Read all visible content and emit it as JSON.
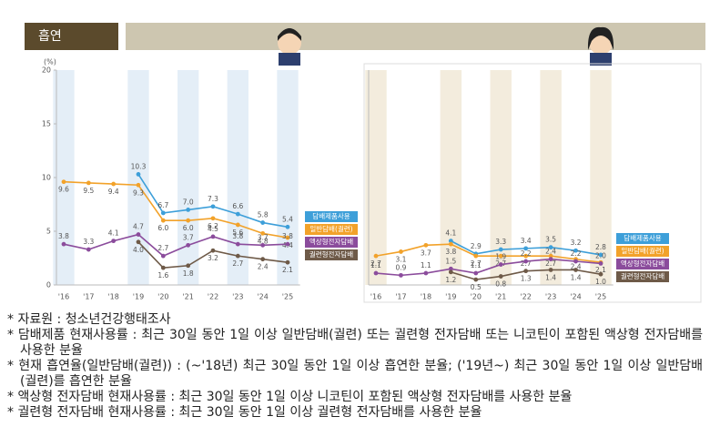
{
  "header": {
    "title": "흡연"
  },
  "chart_data": [
    {
      "type": "line",
      "y_unit": "(%)",
      "categories": [
        "'16",
        "'17",
        "'18",
        "'19",
        "'20",
        "'21",
        "'22",
        "'23",
        "'24",
        "'25"
      ],
      "ylim": [
        0,
        20
      ],
      "yticks": [
        0,
        5,
        10,
        15,
        20
      ],
      "series": [
        {
          "name": "담배제품사용",
          "color": "#3d9fd9",
          "values": [
            null,
            null,
            null,
            10.3,
            6.7,
            7.0,
            7.3,
            6.6,
            5.8,
            5.4
          ],
          "value_labels": [
            null,
            null,
            null,
            "10.3",
            "6.7",
            "7.0",
            "7.3",
            "6.6",
            "5.8",
            "5.4"
          ]
        },
        {
          "name": "일반담배(궐련)",
          "color": "#f2a22a",
          "values": [
            9.6,
            9.5,
            9.4,
            9.3,
            6.0,
            6.0,
            6.2,
            5.6,
            4.8,
            4.4
          ],
          "value_labels": [
            "9.6",
            "9.5",
            "9.4",
            "9.3",
            "6.0",
            "6.0",
            "6.2",
            "5.6",
            "4.8",
            "4.4"
          ]
        },
        {
          "name": "액상형전자담배",
          "color": "#8b4c9c",
          "values": [
            3.8,
            3.3,
            4.1,
            4.7,
            2.7,
            3.7,
            4.5,
            3.8,
            3.7,
            3.8
          ],
          "value_labels": [
            "3.8",
            "3.3",
            "4.1",
            "4.7",
            "2.7",
            "3.7",
            "4.5",
            "3.8",
            "3.7",
            "3.8"
          ]
        },
        {
          "name": "궐련형전자담배",
          "color": "#6e5a48",
          "values": [
            null,
            null,
            null,
            4.0,
            1.6,
            1.8,
            3.2,
            2.7,
            2.4,
            2.1
          ],
          "value_labels": [
            null,
            null,
            null,
            "4.0",
            "1.6",
            "1.8",
            "3.2",
            "2.7",
            "2.4",
            "2.1"
          ]
        }
      ]
    },
    {
      "type": "line",
      "categories": [
        "'16",
        "'17",
        "'18",
        "'19",
        "'20",
        "'21",
        "'22",
        "'23",
        "'24",
        "'25"
      ],
      "ylim": [
        0,
        20
      ],
      "series": [
        {
          "name": "담배제품사용",
          "color": "#3d9fd9",
          "values": [
            null,
            null,
            null,
            4.1,
            2.9,
            3.3,
            3.4,
            3.5,
            3.2,
            2.8
          ],
          "value_labels": [
            null,
            null,
            null,
            "4.1",
            "2.9",
            "3.3",
            "3.4",
            "3.5",
            "3.2",
            "2.8"
          ]
        },
        {
          "name": "일반담배(궐련)",
          "color": "#f2a22a",
          "values": [
            2.7,
            3.1,
            3.7,
            3.8,
            2.7,
            2.7,
            2.7,
            2.7,
            2.4,
            2.1
          ],
          "value_labels": [
            "2.7",
            "3.1",
            "3.7",
            "3.8",
            "2.7",
            "2.7",
            "2.7",
            "2.7",
            "2.4",
            "2.1"
          ]
        },
        {
          "name": "액상형전자담배",
          "color": "#8b4c9c",
          "values": [
            1.1,
            0.9,
            1.1,
            1.5,
            1.1,
            1.9,
            2.2,
            2.4,
            2.2,
            2.0
          ],
          "value_labels": [
            "1.1",
            "0.9",
            "1.1",
            "1.5",
            "1.1",
            "1.9",
            "2.2",
            "2.4",
            "2.2",
            "2.0"
          ]
        },
        {
          "name": "궐련형전자담배",
          "color": "#6e5a48",
          "values": [
            null,
            null,
            null,
            1.2,
            0.5,
            0.8,
            1.3,
            1.4,
            1.4,
            1.0
          ],
          "value_labels": [
            null,
            null,
            null,
            "1.2",
            "0.5",
            "0.8",
            "1.3",
            "1.4",
            "1.4",
            "1.0"
          ]
        }
      ]
    }
  ],
  "footnotes": [
    "* 자료원 : 청소년건강행태조사",
    "* 담배제품 현재사용률 : 최근 30일 동안 1일 이상 일반담배(궐련) 또는 궐련형 전자담배 또는 니코틴이 포함된 액상형 전자담배를 사용한 분율",
    "* 현재 흡연율(일반담배(궐련)) : (~'18년) 최근 30일 동안 1일 이상 흡연한 분율; ('19년~) 최근 30일 동안 1일 이상 일반담배(궐련)를 흡연한 분율",
    "* 액상형 전자담배 현재사용률 : 최근 30일 동안 1일 이상 니코틴이 포함된 액상형 전자담배를 사용한 분율",
    "* 궐련형 전자담배 현재사용률 : 최근 30일 동안 1일 이상 궐련형 전자담배를 사용한 분율"
  ]
}
